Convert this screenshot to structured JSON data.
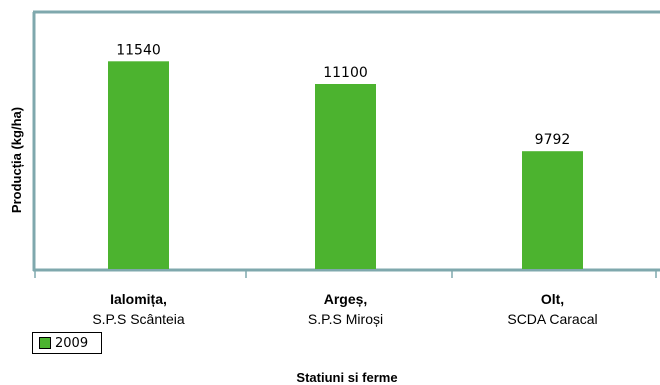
{
  "chart_data": {
    "type": "bar",
    "categories": [
      {
        "region": "Ialomița,",
        "station": "S.P.S Scânteia"
      },
      {
        "region": "Argeș,",
        "station": "S.P.S Miroși"
      },
      {
        "region": "Olt,",
        "station": "SCDA Caracal"
      }
    ],
    "series": [
      {
        "name": "2009",
        "values": [
          11540,
          11100,
          9792
        ],
        "labels": [
          "11540",
          "11100",
          "9792"
        ]
      }
    ],
    "xlabel": "Statiuni si ferme",
    "ylabel": "Producția (kg/ha)",
    "ylim": [
      7500,
      12500
    ],
    "grid": false,
    "legend": "bottom-left"
  },
  "colors": {
    "bar": "#4cb32f",
    "axis": "#7fa8ad"
  }
}
